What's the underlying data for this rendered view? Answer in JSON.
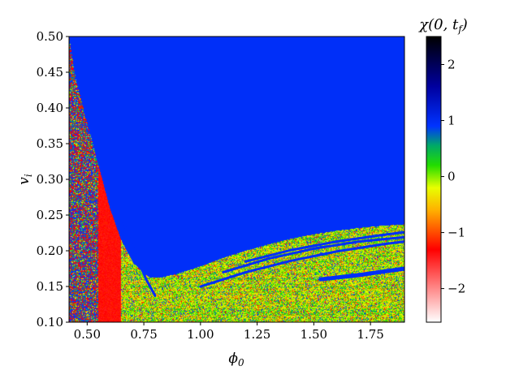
{
  "chart_data": {
    "type": "heatmap",
    "x_name": "ϕ",
    "x_sub": "0",
    "y_name": "v",
    "y_sub": "i",
    "xlim": [
      0.42,
      1.9
    ],
    "ylim": [
      0.1,
      0.5
    ],
    "x_ticks": [
      0.5,
      0.75,
      1.0,
      1.25,
      1.5,
      1.75
    ],
    "x_tick_labels": [
      "0.50",
      "0.75",
      "1.00",
      "1.25",
      "1.50",
      "1.75"
    ],
    "y_ticks": [
      0.1,
      0.15,
      0.2,
      0.25,
      0.3,
      0.35,
      0.4,
      0.45,
      0.5
    ],
    "y_tick_labels": [
      "0.10",
      "0.15",
      "0.20",
      "0.25",
      "0.30",
      "0.35",
      "0.40",
      "0.45",
      "0.50"
    ],
    "colorbar": {
      "label_prefix": "χ(0, t",
      "label_sub": "f",
      "label_suffix": ")",
      "range": [
        -2.6,
        2.5
      ],
      "ticks": [
        -2,
        -1,
        0,
        1,
        2
      ],
      "tick_labels": [
        "−2",
        "−1",
        "0",
        "1",
        "2"
      ],
      "stops": [
        {
          "value": -2.6,
          "color": "#ffffff"
        },
        {
          "value": -1.3,
          "color": "#ff0000"
        },
        {
          "value": -0.6,
          "color": "#ffb000"
        },
        {
          "value": -0.2,
          "color": "#e8ff00"
        },
        {
          "value": 0.2,
          "color": "#22dd00"
        },
        {
          "value": 0.55,
          "color": "#00aa66"
        },
        {
          "value": 0.9,
          "color": "#0033ff"
        },
        {
          "value": 1.6,
          "color": "#0000a0"
        },
        {
          "value": 2.5,
          "color": "#000000"
        }
      ]
    },
    "regions": {
      "upper_value": 0.95,
      "boundary_curve": [
        [
          0.42,
          0.5
        ],
        [
          0.45,
          0.44
        ],
        [
          0.5,
          0.38
        ],
        [
          0.55,
          0.32
        ],
        [
          0.6,
          0.26
        ],
        [
          0.65,
          0.215
        ],
        [
          0.7,
          0.185
        ],
        [
          0.75,
          0.168
        ],
        [
          0.78,
          0.162
        ],
        [
          0.82,
          0.162
        ],
        [
          0.9,
          0.168
        ],
        [
          1.0,
          0.178
        ],
        [
          1.1,
          0.19
        ],
        [
          1.2,
          0.2
        ],
        [
          1.3,
          0.209
        ],
        [
          1.4,
          0.217
        ],
        [
          1.5,
          0.223
        ],
        [
          1.6,
          0.228
        ],
        [
          1.7,
          0.232
        ],
        [
          1.8,
          0.235
        ],
        [
          1.9,
          0.237
        ]
      ],
      "red_strip": {
        "x_range": [
          0.55,
          0.65
        ],
        "value": -1.3
      },
      "mixed_band": {
        "x_range": [
          0.42,
          0.55
        ]
      }
    },
    "stripes": [
      [
        [
          0.66,
          0.24
        ],
        [
          0.72,
          0.19
        ],
        [
          0.76,
          0.16
        ],
        [
          0.8,
          0.137
        ]
      ],
      [
        [
          1.0,
          0.15
        ],
        [
          1.2,
          0.17
        ],
        [
          1.4,
          0.186
        ],
        [
          1.6,
          0.199
        ],
        [
          1.8,
          0.209
        ],
        [
          1.9,
          0.213
        ]
      ],
      [
        [
          1.1,
          0.17
        ],
        [
          1.3,
          0.189
        ],
        [
          1.5,
          0.203
        ],
        [
          1.7,
          0.213
        ],
        [
          1.9,
          0.219
        ]
      ],
      [
        [
          1.2,
          0.185
        ],
        [
          1.4,
          0.201
        ],
        [
          1.6,
          0.213
        ],
        [
          1.8,
          0.222
        ],
        [
          1.9,
          0.226
        ]
      ],
      [
        [
          1.53,
          0.16
        ],
        [
          1.7,
          0.166
        ],
        [
          1.9,
          0.175
        ]
      ]
    ]
  }
}
